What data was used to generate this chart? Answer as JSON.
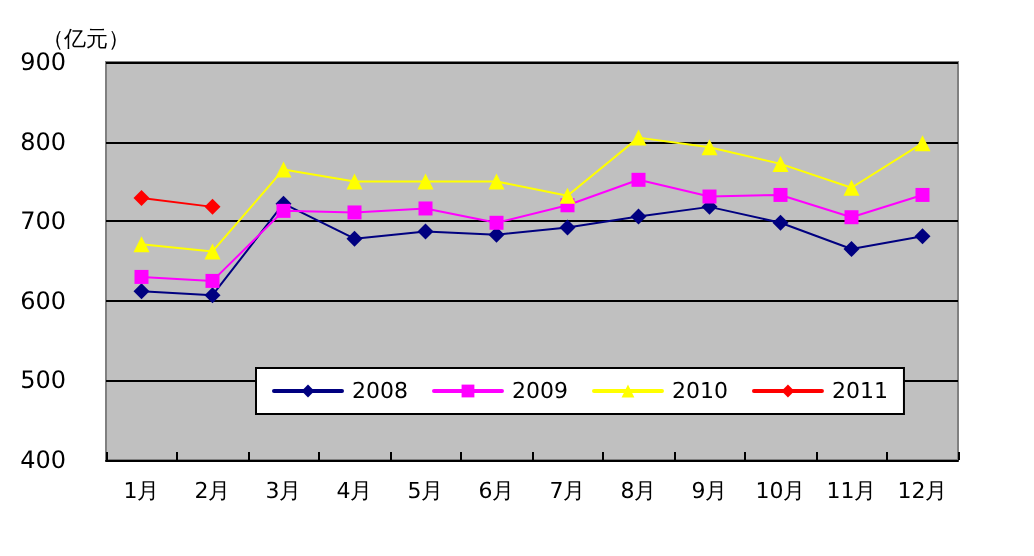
{
  "chart_data": {
    "type": "line",
    "ylabel": "（亿元）",
    "categories": [
      "1月",
      "2月",
      "3月",
      "4月",
      "5月",
      "6月",
      "7月",
      "8月",
      "9月",
      "10月",
      "11月",
      "12月"
    ],
    "series": [
      {
        "name": "2008",
        "color": "#000080",
        "marker": "diamond",
        "values": [
          612,
          607,
          722,
          678,
          687,
          683,
          692,
          706,
          718,
          698,
          665,
          681
        ]
      },
      {
        "name": "2009",
        "color": "#ff00ff",
        "marker": "square",
        "values": [
          630,
          625,
          713,
          711,
          716,
          698,
          720,
          752,
          731,
          733,
          705,
          733
        ]
      },
      {
        "name": "2010",
        "color": "#ffff00",
        "marker": "triangle",
        "values": [
          671,
          662,
          765,
          750,
          750,
          750,
          732,
          805,
          793,
          772,
          742,
          798
        ]
      },
      {
        "name": "2011",
        "color": "#ff0000",
        "marker": "diamond",
        "values": [
          729,
          718,
          null,
          null,
          null,
          null,
          null,
          null,
          null,
          null,
          null,
          null
        ]
      }
    ],
    "ylim": [
      400,
      900
    ],
    "yticks": [
      400,
      500,
      600,
      700,
      800,
      900
    ],
    "grid": "y",
    "legend": "bottom"
  }
}
